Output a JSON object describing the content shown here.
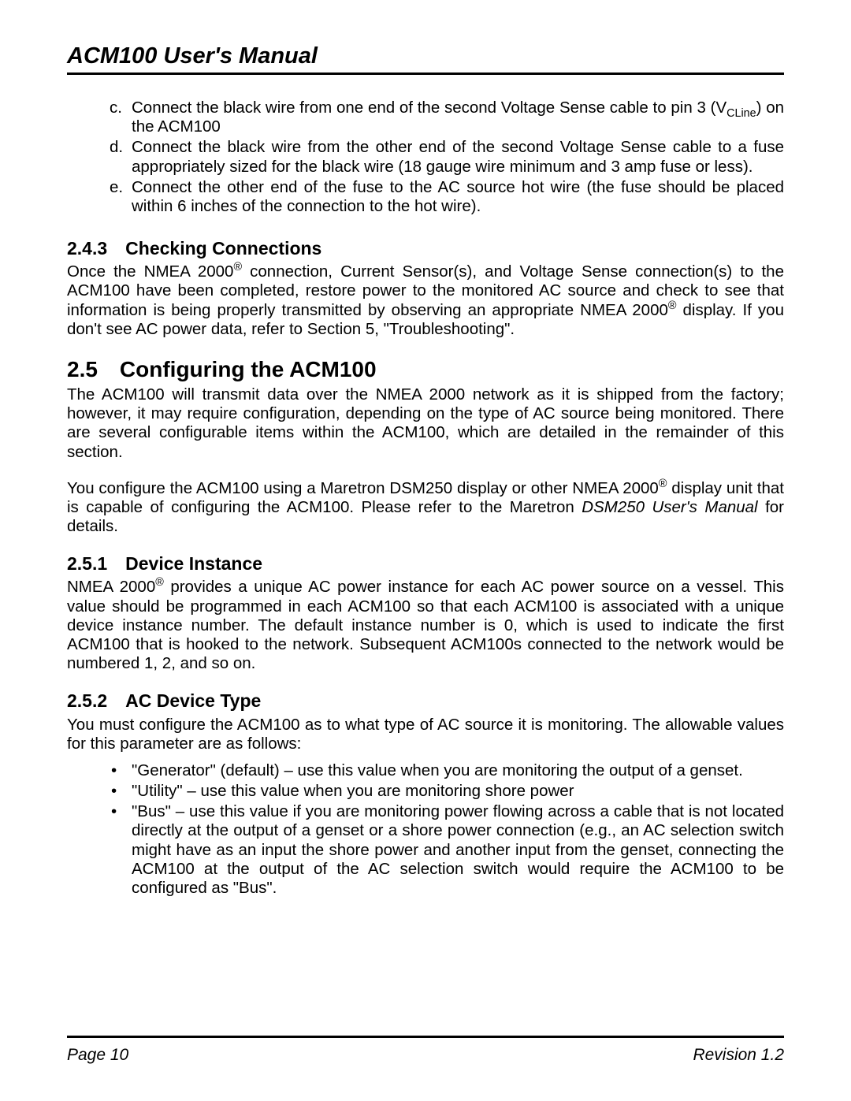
{
  "header": {
    "title": "ACM100 User's Manual"
  },
  "lettered": {
    "c": {
      "letter": "c.",
      "pre": "Connect the black wire from one end of the second Voltage Sense cable to pin 3 (V",
      "sub": "CLine",
      "post": ") on the ACM100"
    },
    "d": {
      "letter": "d.",
      "text": "Connect the black wire from the other end of the second Voltage Sense cable to a fuse appropriately sized for the black wire (18 gauge wire minimum and 3 amp fuse or less)."
    },
    "e": {
      "letter": "e.",
      "text": "Connect the other end of the fuse to the AC source hot wire (the fuse should be placed within 6 inches of the connection to the hot wire)."
    }
  },
  "sec243": {
    "heading": "2.4.3 Checking Connections",
    "pre": "Once the NMEA 2000",
    "sup1": "®",
    "mid": " connection, Current Sensor(s), and Voltage Sense connection(s) to the ACM100 have been completed, restore power to the monitored AC source and check to see that information is being properly transmitted by observing an appropriate NMEA 2000",
    "sup2": "®",
    "post": " display.  If you don't see AC power data, refer to Section 5, \"Troubleshooting\"."
  },
  "sec25": {
    "heading": "2.5 Configuring the ACM100",
    "para1": "The ACM100 will transmit data over the NMEA 2000 network as it is shipped from the factory; however, it may require configuration, depending on the type of AC source being monitored. There are several configurable items within the ACM100, which are detailed in the remainder of this section.",
    "para2_pre": "You configure the ACM100 using a Maretron DSM250 display or other NMEA 2000",
    "para2_sup": "®",
    "para2_mid": " display unit that is capable of configuring the ACM100. Please refer to the Maretron ",
    "para2_italic": "DSM250 User's Manual",
    "para2_post": " for details."
  },
  "sec251": {
    "heading": "2.5.1 Device Instance",
    "pre": "NMEA 2000",
    "sup": "®",
    "post": " provides a unique AC power instance for each AC power source on a vessel. This value should be programmed in each ACM100 so that each ACM100 is associated with a unique device instance number. The default instance number is 0, which is used to indicate the first ACM100 that is hooked to the network. Subsequent ACM100s connected to the network would be numbered 1, 2, and so on."
  },
  "sec252": {
    "heading": "2.5.2 AC Device Type",
    "intro": "You must configure the ACM100 as to what type of AC source it is monitoring. The allowable values for this parameter are as follows:",
    "b1": "\"Generator\" (default) – use this value when you are monitoring the output of a genset.",
    "b2": "\"Utility\" – use this value when you are monitoring shore power",
    "b3": "\"Bus\" – use this value if you are monitoring power flowing across a cable that is not located directly at the output of a genset or a shore power connection (e.g., an AC selection switch might have as an input the shore power and another input from the genset, connecting the ACM100 at the output of the AC selection switch would require the ACM100 to be configured as \"Bus\"."
  },
  "footer": {
    "left": "Page 10",
    "right": "Revision 1.2"
  }
}
